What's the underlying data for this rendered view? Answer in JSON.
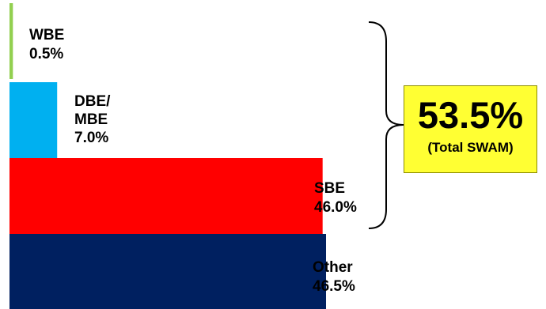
{
  "chart_data": {
    "type": "bar",
    "orientation": "horizontal",
    "categories": [
      "WBE",
      "DBE/MBE",
      "SBE",
      "Other"
    ],
    "values": [
      0.5,
      7.0,
      46.0,
      46.5
    ],
    "unit": "%",
    "colors": [
      "#92d050",
      "#00b0f0",
      "#ff0000",
      "#002060"
    ],
    "labels": [
      [
        "WBE",
        "0.5%"
      ],
      [
        "DBE/",
        "MBE",
        "7.0%"
      ],
      [
        "SBE",
        "46.0%"
      ],
      [
        "Other",
        "46.5%"
      ]
    ],
    "bracket_groups": [
      "WBE",
      "DBE/MBE",
      "SBE"
    ],
    "title": "",
    "xlabel": "",
    "ylabel": "",
    "grid": false,
    "legend": "none"
  },
  "total": {
    "value": "53.5%",
    "caption": "(Total SWAM)",
    "color": "#ffff33"
  }
}
